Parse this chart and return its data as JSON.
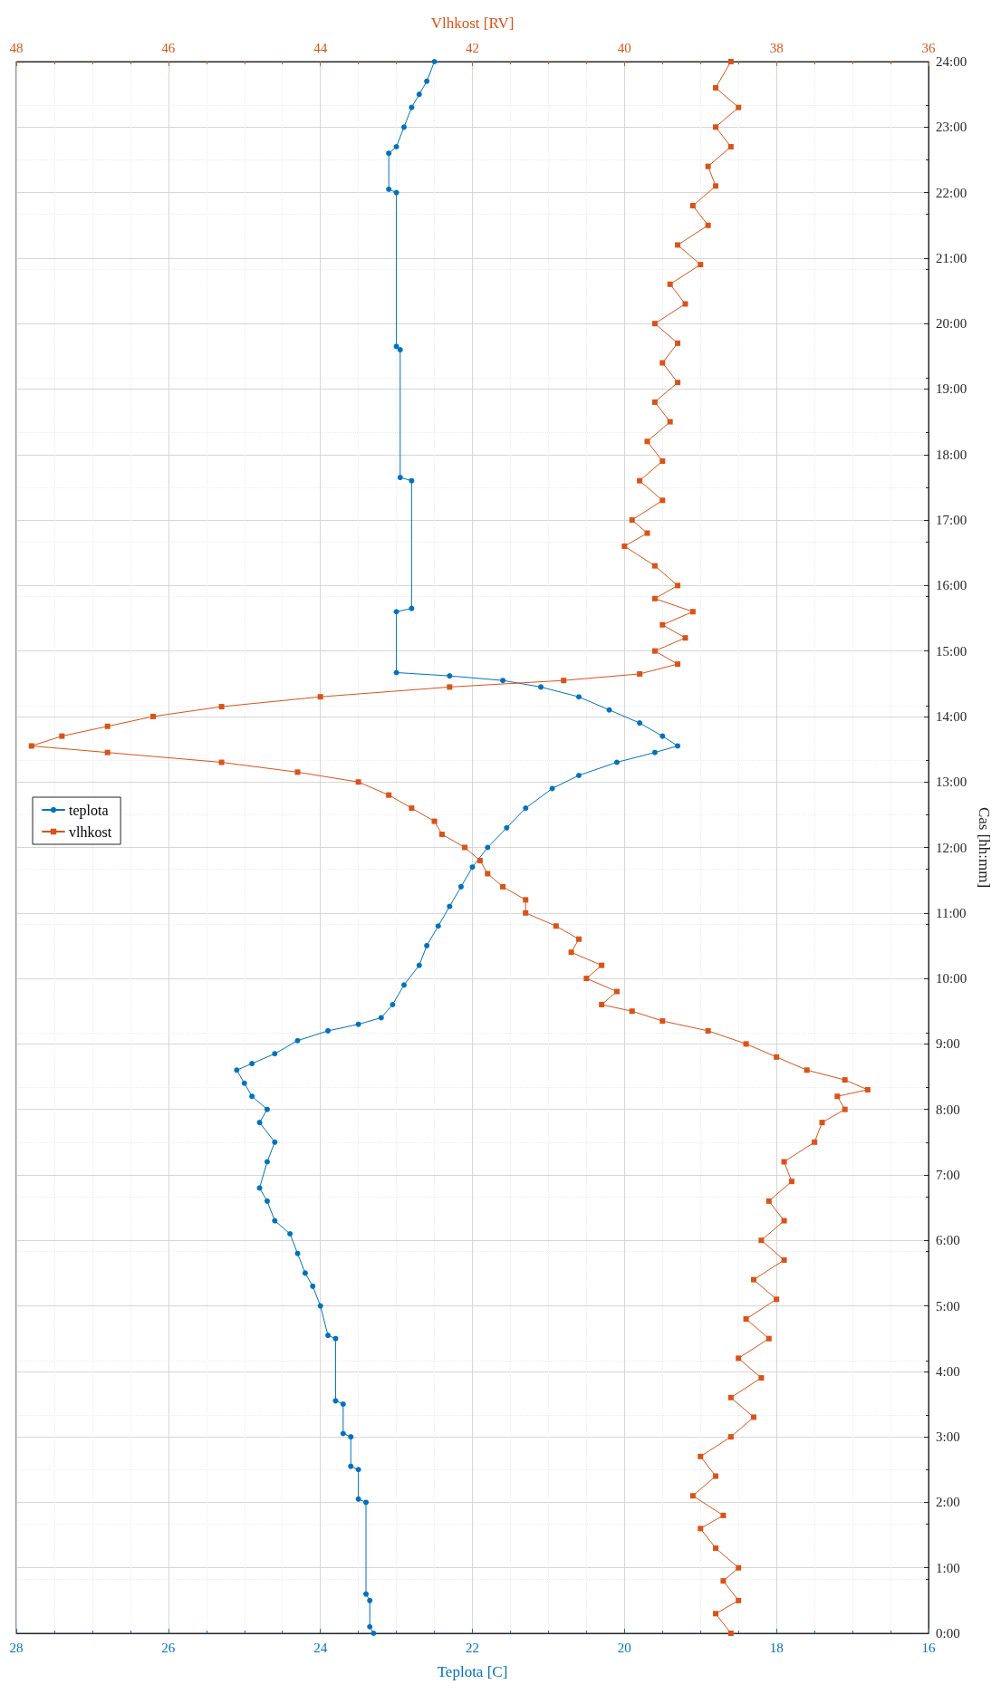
{
  "chart_data": {
    "type": "line",
    "xlabel": "Teplota [C]",
    "x2label": "Vlhkost [RV]",
    "ylabel": "Cas [hh:mm]",
    "ylim": [
      0,
      24
    ],
    "yticks": [
      {
        "value": 0,
        "label": "0:00"
      },
      {
        "value": 1,
        "label": "1:00"
      },
      {
        "value": 2,
        "label": "2:00"
      },
      {
        "value": 3,
        "label": "3:00"
      },
      {
        "value": 4,
        "label": "4:00"
      },
      {
        "value": 5,
        "label": "5:00"
      },
      {
        "value": 6,
        "label": "6:00"
      },
      {
        "value": 7,
        "label": "7:00"
      },
      {
        "value": 8,
        "label": "8:00"
      },
      {
        "value": 9,
        "label": "9:00"
      },
      {
        "value": 10,
        "label": "10:00"
      },
      {
        "value": 11,
        "label": "11:00"
      },
      {
        "value": 12,
        "label": "12:00"
      },
      {
        "value": 13,
        "label": "13:00"
      },
      {
        "value": 14,
        "label": "14:00"
      },
      {
        "value": 15,
        "label": "15:00"
      },
      {
        "value": 16,
        "label": "16:00"
      },
      {
        "value": 17,
        "label": "17:00"
      },
      {
        "value": 18,
        "label": "18:00"
      },
      {
        "value": 19,
        "label": "19:00"
      },
      {
        "value": 20,
        "label": "20:00"
      },
      {
        "value": 21,
        "label": "21:00"
      },
      {
        "value": 22,
        "label": "22:00"
      },
      {
        "value": 23,
        "label": "23:00"
      },
      {
        "value": 24,
        "label": "24:00"
      }
    ],
    "xlim": [
      28,
      16
    ],
    "xticks": [
      28,
      26,
      24,
      22,
      20,
      18,
      16
    ],
    "x2lim": [
      48,
      36
    ],
    "x2ticks": [
      48,
      46,
      44,
      42,
      40,
      38,
      36
    ],
    "grid": true,
    "legend": "left",
    "line_style": "solid",
    "series": [
      {
        "name": "teplota",
        "color": "#0072bd",
        "marker": "circle",
        "values": [
          0,
          0.1,
          0.5,
          0.6,
          2.0,
          2.05,
          2.5,
          2.55,
          3.0,
          3.05,
          3.5,
          3.55,
          4.5,
          4.55,
          5.0,
          5.3,
          5.5,
          5.8,
          6.1,
          6.3,
          6.6,
          6.8,
          7.2,
          7.5,
          7.8,
          8.0,
          8.2,
          8.4,
          8.6,
          8.7,
          8.85,
          9.05,
          9.2,
          9.3,
          9.4,
          9.6,
          9.9,
          10.2,
          10.5,
          10.8,
          11.1,
          11.4,
          11.7,
          12.0,
          12.3,
          12.6,
          12.9,
          13.1,
          13.3,
          13.45,
          13.55,
          13.7,
          13.9,
          14.1,
          14.3,
          14.45,
          14.55,
          14.62,
          14.67,
          15.6,
          15.65,
          17.6,
          17.65,
          19.6,
          19.65,
          22.0,
          22.05,
          22.6,
          22.7,
          23.0,
          23.3,
          23.5,
          23.7,
          24.0
        ],
        "x": [
          23.3,
          23.35,
          23.35,
          23.4,
          23.4,
          23.5,
          23.5,
          23.6,
          23.6,
          23.7,
          23.7,
          23.8,
          23.8,
          23.9,
          24.0,
          24.1,
          24.2,
          24.3,
          24.4,
          24.6,
          24.7,
          24.8,
          24.7,
          24.6,
          24.8,
          24.7,
          24.9,
          25.0,
          25.1,
          24.9,
          24.6,
          24.3,
          23.9,
          23.5,
          23.2,
          23.05,
          22.9,
          22.7,
          22.6,
          22.45,
          22.3,
          22.15,
          22.0,
          21.8,
          21.55,
          21.3,
          20.95,
          20.6,
          20.1,
          19.6,
          19.3,
          19.5,
          19.8,
          20.2,
          20.6,
          21.1,
          21.6,
          22.3,
          23.0,
          23.0,
          22.8,
          22.8,
          22.95,
          22.95,
          23.0,
          23.0,
          23.1,
          23.1,
          23.0,
          22.9,
          22.8,
          22.7,
          22.6,
          22.5
        ]
      },
      {
        "name": "vlhkost",
        "color": "#d95319",
        "marker": "square",
        "axis": "x2",
        "values": [
          0,
          0.3,
          0.5,
          0.8,
          1.0,
          1.3,
          1.6,
          1.8,
          2.1,
          2.4,
          2.7,
          3.0,
          3.3,
          3.6,
          3.9,
          4.2,
          4.5,
          4.8,
          5.1,
          5.4,
          5.7,
          6.0,
          6.3,
          6.6,
          6.9,
          7.2,
          7.5,
          7.8,
          8.0,
          8.2,
          8.3,
          8.45,
          8.6,
          8.8,
          9.0,
          9.2,
          9.35,
          9.5,
          9.6,
          9.8,
          10.0,
          10.2,
          10.4,
          10.6,
          10.8,
          11.0,
          11.2,
          11.4,
          11.6,
          11.8,
          12.0,
          12.2,
          12.4,
          12.6,
          12.8,
          13.0,
          13.15,
          13.3,
          13.45,
          13.55,
          13.7,
          13.85,
          14.0,
          14.15,
          14.3,
          14.45,
          14.55,
          14.65,
          14.8,
          15.0,
          15.2,
          15.4,
          15.6,
          15.8,
          16.0,
          16.3,
          16.6,
          16.8,
          17.0,
          17.3,
          17.6,
          17.9,
          18.2,
          18.5,
          18.8,
          19.1,
          19.4,
          19.7,
          20.0,
          20.3,
          20.6,
          20.9,
          21.2,
          21.5,
          21.8,
          22.1,
          22.4,
          22.7,
          23.0,
          23.3,
          23.6,
          24.0
        ],
        "x": [
          38.6,
          38.8,
          38.5,
          38.7,
          38.5,
          38.8,
          39.0,
          38.7,
          39.1,
          38.8,
          39.0,
          38.6,
          38.3,
          38.6,
          38.2,
          38.5,
          38.1,
          38.4,
          38.0,
          38.3,
          37.9,
          38.2,
          37.9,
          38.1,
          37.8,
          37.9,
          37.5,
          37.4,
          37.1,
          37.2,
          36.8,
          37.1,
          37.6,
          38.0,
          38.4,
          38.9,
          39.5,
          39.9,
          40.3,
          40.1,
          40.5,
          40.3,
          40.7,
          40.6,
          40.9,
          41.3,
          41.3,
          41.6,
          41.8,
          41.9,
          42.1,
          42.4,
          42.5,
          42.8,
          43.1,
          43.5,
          44.3,
          45.3,
          46.8,
          47.8,
          47.4,
          46.8,
          46.2,
          45.3,
          44.0,
          42.3,
          40.8,
          39.8,
          39.3,
          39.6,
          39.2,
          39.5,
          39.1,
          39.6,
          39.3,
          39.6,
          40.0,
          39.7,
          39.9,
          39.5,
          39.8,
          39.5,
          39.7,
          39.4,
          39.6,
          39.3,
          39.5,
          39.3,
          39.6,
          39.2,
          39.4,
          39.0,
          39.3,
          38.9,
          39.1,
          38.8,
          38.9,
          38.6,
          38.8,
          38.5,
          38.8,
          38.6
        ]
      }
    ]
  }
}
